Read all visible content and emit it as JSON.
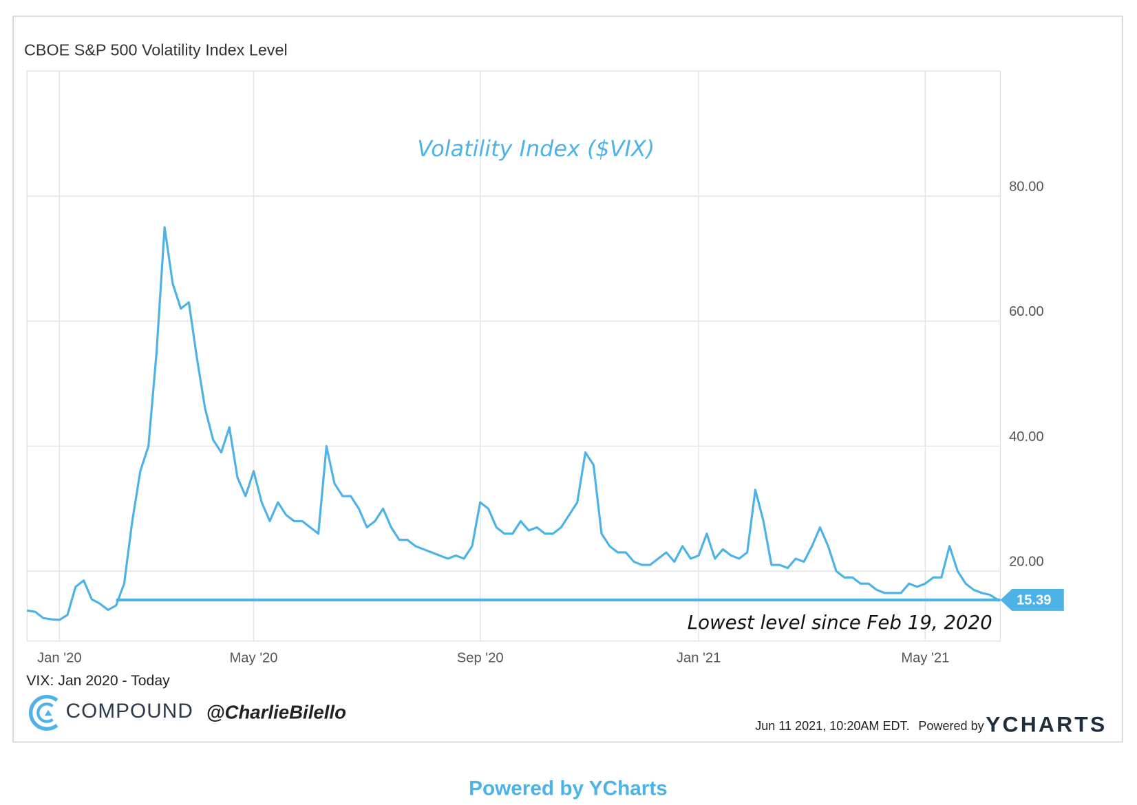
{
  "chart_data": {
    "type": "line",
    "title": "CBOE S&P 500 Volatility Index Level",
    "subtitle": "VIX: Jan 2020 - Today",
    "categories": [
      null,
      null,
      null,
      null,
      "Jan '20",
      null,
      null,
      null,
      null,
      null,
      null,
      null,
      null,
      null,
      null,
      null,
      null,
      null,
      null,
      null,
      null,
      null,
      null,
      null,
      null,
      null,
      null,
      null,
      "May '20",
      null,
      null,
      null,
      null,
      null,
      null,
      null,
      null,
      null,
      null,
      null,
      null,
      null,
      null,
      null,
      null,
      null,
      null,
      null,
      null,
      null,
      null,
      null,
      null,
      null,
      null,
      null,
      "Sep '20",
      null,
      null,
      null,
      null,
      null,
      null,
      null,
      null,
      null,
      null,
      null,
      null,
      null,
      null,
      null,
      null,
      null,
      null,
      null,
      null,
      null,
      null,
      null,
      null,
      null,
      null,
      "Jan '21",
      null,
      null,
      null,
      null,
      null,
      null,
      null,
      null,
      null,
      null,
      null,
      null,
      null,
      null,
      null,
      null,
      null,
      null,
      null,
      null,
      null,
      null,
      null,
      null,
      null,
      null,
      null,
      "May '21",
      null,
      null,
      null,
      null,
      null,
      null,
      null,
      null,
      null
    ],
    "series": [
      {
        "name": "Volatility Index ($VIX)",
        "color": "#4db3e6",
        "values": [
          13.7,
          13.5,
          12.5,
          12.3,
          12.2,
          13.0,
          17.5,
          18.5,
          15.5,
          14.8,
          13.8,
          14.5,
          18,
          28,
          36,
          40,
          55,
          75,
          66,
          62,
          63,
          54,
          46,
          41,
          39,
          43,
          35,
          32,
          36,
          31,
          28,
          31,
          29,
          28,
          28,
          27,
          26,
          40,
          34,
          32,
          32,
          30,
          27,
          28,
          30,
          27,
          25,
          25,
          24,
          23.5,
          23,
          22.5,
          22,
          22.5,
          22,
          24,
          31,
          30,
          27,
          26,
          26,
          28,
          26.5,
          27,
          26,
          26,
          27,
          29,
          31,
          39,
          37,
          26,
          24,
          23,
          23,
          21.5,
          21,
          21,
          22,
          23,
          21.5,
          24,
          22,
          22.5,
          26,
          22,
          23.5,
          22.5,
          22,
          23,
          33,
          28,
          21,
          21,
          20.5,
          22,
          21.5,
          24,
          27,
          24,
          20,
          19,
          19,
          18,
          18,
          17,
          16.5,
          16.5,
          16.5,
          18,
          17.5,
          18,
          19,
          19,
          24,
          20,
          18,
          17,
          16.5,
          16.2,
          15.39
        ]
      }
    ],
    "ylim": [
      8.8,
      100
    ],
    "yticks": [
      {
        "value": 20,
        "label": "20.00"
      },
      {
        "value": 40,
        "label": "40.00"
      },
      {
        "value": 60,
        "label": "60.00"
      },
      {
        "value": 80,
        "label": "80.00"
      }
    ],
    "grid": true,
    "reference_line": {
      "value": 15.39,
      "annotation": "Lowest level since Feb 19, 2020",
      "color": "#4db3e6"
    },
    "brand": "COMPOUND",
    "handle": "@CharlieBilello",
    "timestamp": "Jun 11 2021, 10:20AM EDT.",
    "powered_by": "Powered by",
    "provider": "YCHARTS",
    "footer_link": "Powered by YCharts"
  }
}
